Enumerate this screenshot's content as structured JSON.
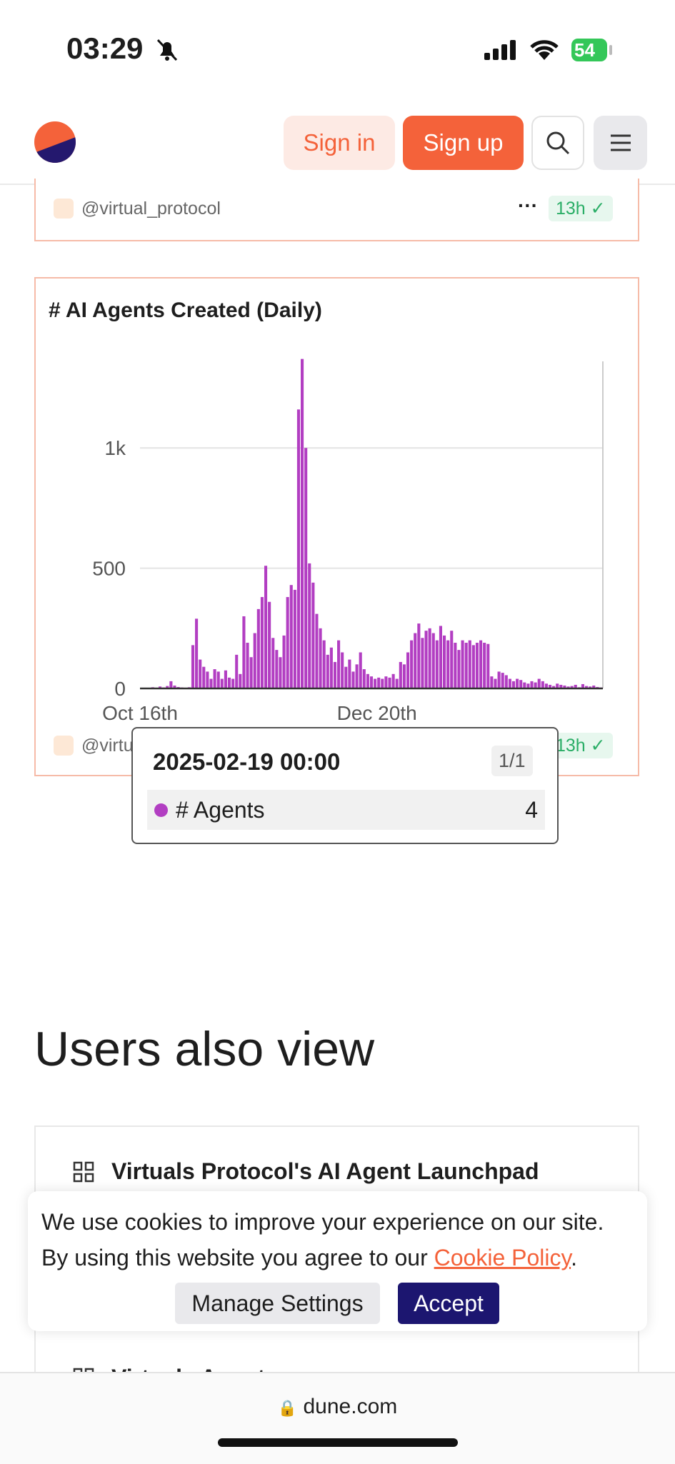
{
  "status_bar": {
    "time": "03:29",
    "battery": "54"
  },
  "nav": {
    "sign_in": "Sign in",
    "sign_up": "Sign up"
  },
  "cards": [
    {
      "author": "@virtual_protocol",
      "age": "13h"
    },
    {
      "author": "@virtual_protocol",
      "age": "13h"
    }
  ],
  "chart_data": {
    "type": "bar",
    "title": "# AI Agents Created (Daily)",
    "categories": [
      "Oct 16th",
      null,
      null,
      null,
      null,
      null,
      null,
      null,
      null,
      null,
      null,
      null,
      null,
      null,
      null,
      null,
      null,
      null,
      null,
      null,
      null,
      null,
      null,
      null,
      null,
      null,
      null,
      null,
      null,
      null,
      null,
      null,
      null,
      null,
      null,
      null,
      null,
      null,
      null,
      null,
      null,
      null,
      null,
      null,
      null,
      null,
      null,
      null,
      null,
      null,
      null,
      null,
      null,
      null,
      null,
      null,
      null,
      null,
      null,
      null,
      null,
      null,
      null,
      null,
      null,
      "Dec 20th",
      null,
      null,
      null,
      null,
      null,
      null,
      null,
      null,
      null,
      null,
      null,
      null,
      null,
      null,
      null,
      null,
      null,
      null,
      null,
      null,
      null,
      null,
      null,
      null,
      null,
      null,
      null,
      null,
      null,
      null,
      null,
      null,
      null,
      null,
      null,
      null,
      null,
      null,
      null,
      null,
      null,
      null,
      null,
      null,
      null,
      null,
      null,
      null,
      null,
      null,
      null,
      null,
      null,
      null,
      null,
      null,
      null,
      null,
      null,
      null,
      null
    ],
    "series": [
      {
        "name": "# Agents",
        "color": "#b23ec2",
        "values": [
          2,
          3,
          1,
          5,
          2,
          8,
          4,
          10,
          30,
          12,
          6,
          4,
          3,
          5,
          180,
          290,
          120,
          90,
          70,
          40,
          80,
          70,
          40,
          75,
          45,
          40,
          140,
          60,
          300,
          190,
          130,
          230,
          330,
          380,
          510,
          360,
          210,
          160,
          130,
          220,
          380,
          430,
          410,
          1160,
          1370,
          1000,
          520,
          440,
          310,
          250,
          200,
          140,
          170,
          110,
          200,
          150,
          90,
          120,
          70,
          100,
          150,
          80,
          60,
          50,
          40,
          45,
          40,
          50,
          45,
          60,
          40,
          110,
          100,
          150,
          200,
          230,
          270,
          210,
          240,
          250,
          230,
          200,
          260,
          220,
          200,
          240,
          190,
          160,
          200,
          190,
          200,
          180,
          190,
          200,
          190,
          185,
          50,
          40,
          70,
          65,
          55,
          40,
          30,
          40,
          35,
          25,
          20,
          30,
          25,
          40,
          30,
          20,
          15,
          10,
          20,
          15,
          12,
          8,
          10,
          15,
          5,
          18,
          10,
          8,
          12,
          6,
          4
        ]
      }
    ],
    "ylim": [
      0,
      1360
    ],
    "yticks": [
      0,
      500,
      {
        "value": 1000,
        "label": "1k"
      }
    ],
    "grid": true
  },
  "tooltip": {
    "title": "2025-02-19 00:00",
    "page": "1/1"
  },
  "section_title": "Users also view",
  "related": [
    "Virtuals Protocol's AI Agent Launchpad",
    "Virtuals Agent"
  ],
  "cookie": {
    "line1": "We use cookies to improve your experience on our site.",
    "line2": "By using this website you agree to our ",
    "link": "Cookie Policy",
    "end": ".",
    "manage": "Manage Settings",
    "accept": "Accept"
  },
  "url": "dune.com"
}
